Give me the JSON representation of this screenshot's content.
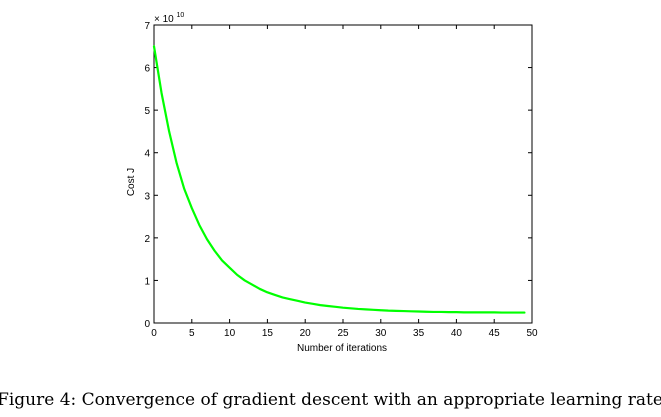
{
  "chart_data": {
    "type": "line",
    "title": "",
    "xlabel": "Number of iterations",
    "ylabel": "Cost J",
    "y_multiplier_label": "× 10",
    "y_multiplier_exponent": "10",
    "xlim": [
      0,
      50
    ],
    "ylim": [
      0,
      7
    ],
    "x_ticks": [
      0,
      5,
      10,
      15,
      20,
      25,
      30,
      35,
      40,
      45,
      50
    ],
    "y_ticks": [
      0,
      1,
      2,
      3,
      4,
      5,
      6,
      7
    ],
    "grid": false,
    "legend": "none",
    "series": [
      {
        "color": "#00ff00",
        "x": [
          0,
          1,
          2,
          3,
          4,
          5,
          6,
          7,
          8,
          9,
          10,
          11,
          12,
          13,
          14,
          15,
          16,
          17,
          18,
          19,
          20,
          21,
          22,
          23,
          24,
          25,
          26,
          27,
          28,
          29,
          30,
          31,
          32,
          33,
          34,
          35,
          36,
          37,
          38,
          39,
          40,
          41,
          42,
          43,
          44,
          45,
          46,
          47,
          48,
          49
        ],
        "y": [
          6.5,
          5.4,
          4.5,
          3.75,
          3.15,
          2.7,
          2.3,
          1.97,
          1.7,
          1.47,
          1.3,
          1.13,
          1.0,
          0.9,
          0.8,
          0.72,
          0.66,
          0.6,
          0.56,
          0.52,
          0.48,
          0.45,
          0.42,
          0.4,
          0.38,
          0.36,
          0.345,
          0.33,
          0.32,
          0.31,
          0.3,
          0.29,
          0.285,
          0.28,
          0.275,
          0.27,
          0.265,
          0.26,
          0.26,
          0.255,
          0.255,
          0.25,
          0.25,
          0.25,
          0.25,
          0.25,
          0.245,
          0.245,
          0.245,
          0.245
        ]
      }
    ]
  },
  "caption": "Figure 4: Convergence of gradient descent with an appropriate learning rate"
}
